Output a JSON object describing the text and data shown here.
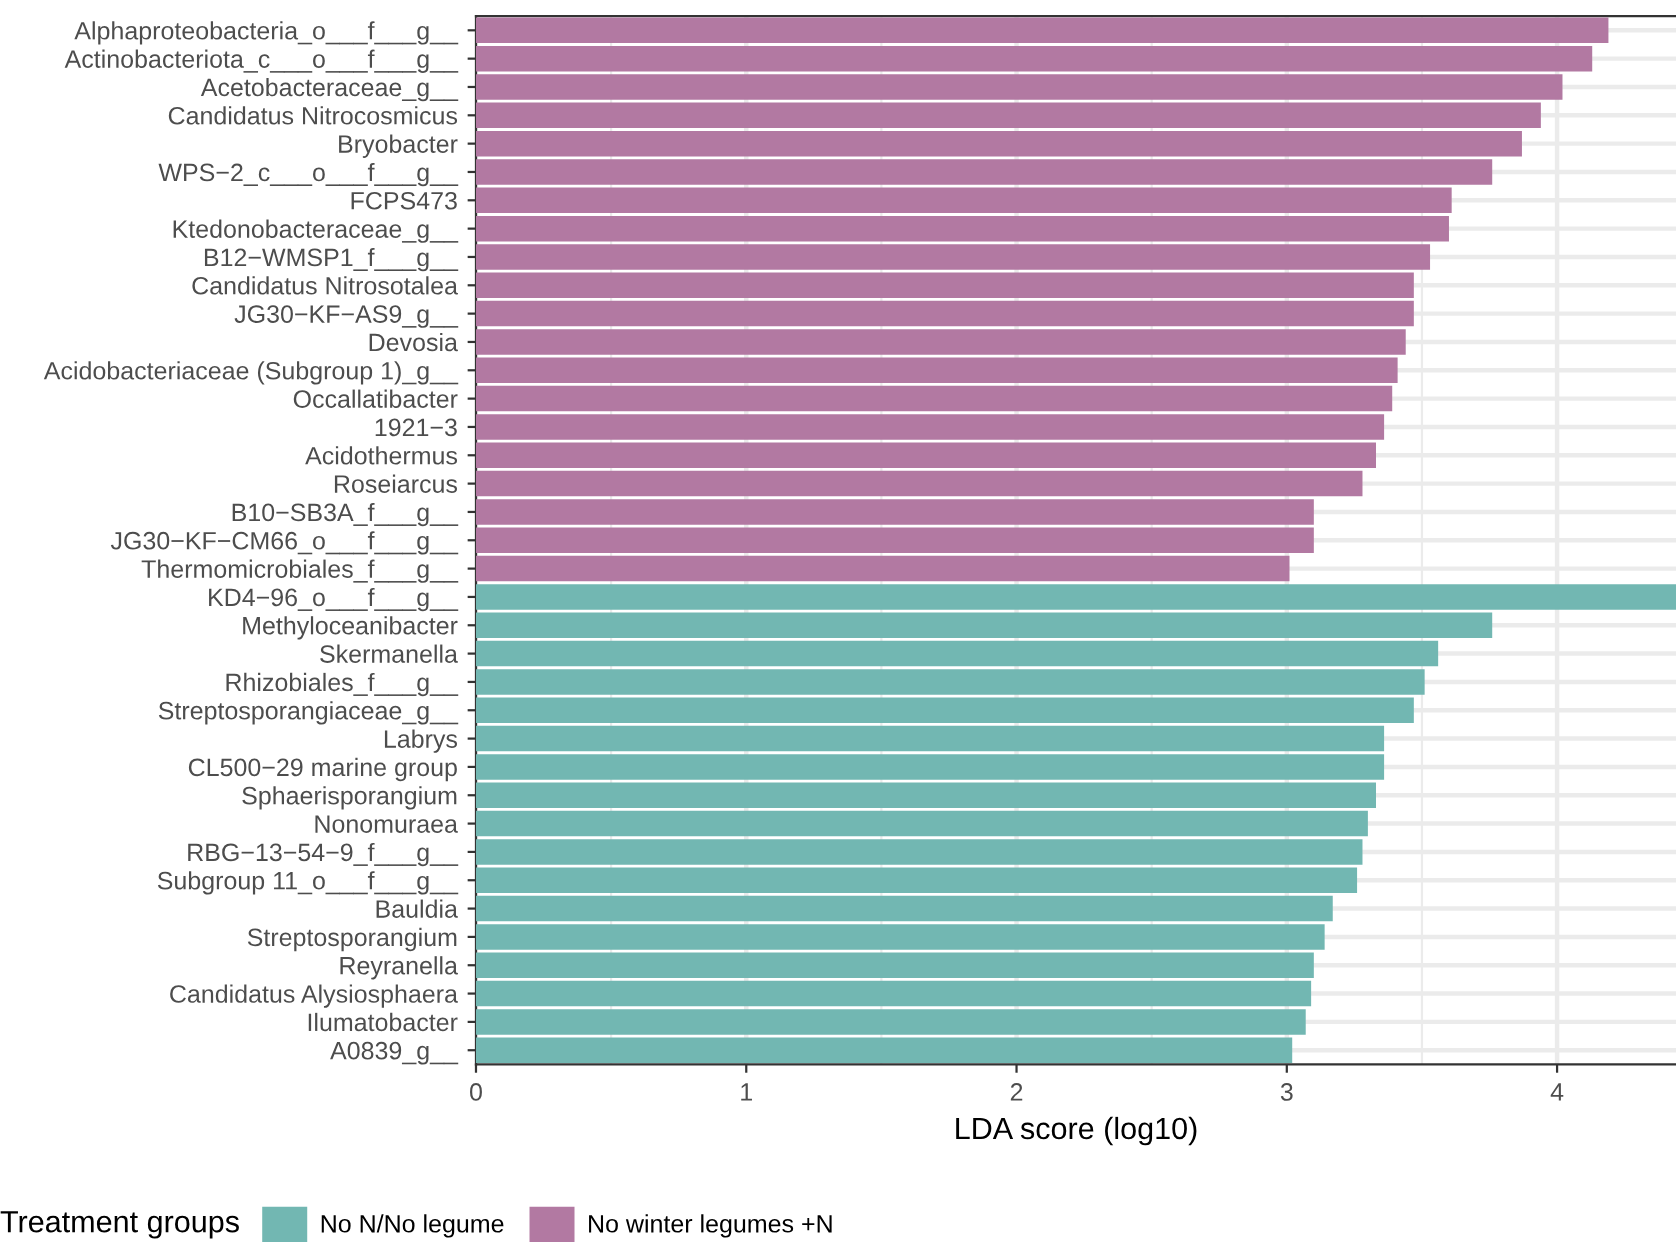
{
  "chart_data": {
    "type": "bar",
    "orientation": "horizontal",
    "xlabel": "LDA score (log10)",
    "legend_title": "Treatment groups",
    "legend": "bottom",
    "grid": true,
    "categories": [
      "Alphaproteobacteria_o___f___g__",
      "Actinobacteriota_c___o___f___g__",
      "Acetobacteraceae_g__",
      "Candidatus Nitrocosmicus",
      "Bryobacter",
      "WPS−2_c___o___f___g__",
      "FCPS473",
      "Ktedonobacteraceae_g__",
      "B12−WMSP1_f___g__",
      "Candidatus Nitrosotalea",
      "JG30−KF−AS9_g__",
      "Devosia",
      "Acidobacteriaceae (Subgroup 1)_g__",
      "Occallatibacter",
      "1921−3",
      "Acidothermus",
      "Roseiarcus",
      "B10−SB3A_f___g__",
      "JG30−KF−CM66_o___f___g__",
      "Thermomicrobiales_f___g__",
      "KD4−96_o___f___g__",
      "Methyloceanibacter",
      "Skermanella",
      "Rhizobiales_f___g__",
      "Streptosporangiaceae_g__",
      "Labrys",
      "CL500−29 marine group",
      "Sphaerisporangium",
      "Nonomuraea",
      "RBG−13−54−9_f___g__",
      "Subgroup 11_o___f___g__",
      "Bauldia",
      "Streptosporangium",
      "Reyranella",
      "Candidatus Alysiosphaera",
      "Ilumatobacter",
      "A0839_g__"
    ],
    "series": [
      {
        "name": "No N/No legume",
        "color": "#72b7b2",
        "values": [
          null,
          null,
          null,
          null,
          null,
          null,
          null,
          null,
          null,
          null,
          null,
          null,
          null,
          null,
          null,
          null,
          null,
          null,
          null,
          null,
          4.44,
          3.76,
          3.56,
          3.51,
          3.47,
          3.36,
          3.36,
          3.33,
          3.3,
          3.28,
          3.26,
          3.17,
          3.14,
          3.1,
          3.09,
          3.07,
          3.02
        ]
      },
      {
        "name": "No winter legumes +N",
        "color": "#b279a2",
        "values": [
          4.19,
          4.13,
          4.02,
          3.94,
          3.87,
          3.76,
          3.61,
          3.6,
          3.53,
          3.47,
          3.47,
          3.44,
          3.41,
          3.39,
          3.36,
          3.33,
          3.28,
          3.1,
          3.1,
          3.01,
          null,
          null,
          null,
          null,
          null,
          null,
          null,
          null,
          null,
          null,
          null,
          null,
          null,
          null,
          null,
          null,
          null
        ]
      }
    ],
    "xlim": [
      0,
      4.44
    ],
    "xticks": [
      0,
      1,
      2,
      3,
      4
    ]
  }
}
